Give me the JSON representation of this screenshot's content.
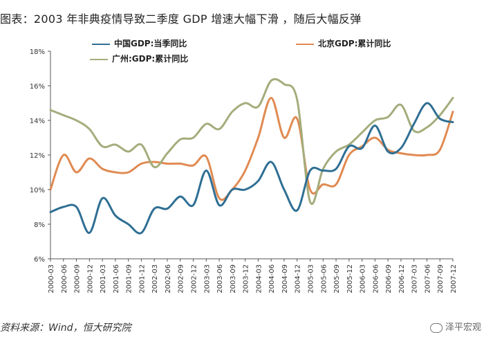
{
  "chart_data": {
    "type": "line",
    "title": "图表：2003 年非典疫情导致二季度 GDP 增速大幅下滑 ，随后大幅反弹",
    "ylim": [
      6,
      18
    ],
    "yticks": [
      "6%",
      "8%",
      "10%",
      "12%",
      "14%",
      "16%",
      "18%"
    ],
    "grid": false,
    "legend_placement": "top-left",
    "categories": [
      "2000-03",
      "2000-06",
      "2000-09",
      "2000-12",
      "2001-03",
      "2001-06",
      "2001-09",
      "2001-12",
      "2002-03",
      "2002-06",
      "2002-09",
      "2002-12",
      "2003-03",
      "2003-06",
      "2003-09",
      "2003-12",
      "2004-03",
      "2004-06",
      "2004-09",
      "2004-12",
      "2005-03",
      "2005-06",
      "2005-09",
      "2005-12",
      "2006-03",
      "2006-06",
      "2006-09",
      "2006-12",
      "2007-03",
      "2007-06",
      "2007-09",
      "2007-12"
    ],
    "series": [
      {
        "name": "中国GDP:当季同比",
        "color": "#2f6f94",
        "values": [
          8.7,
          9.0,
          9.0,
          7.5,
          9.5,
          8.5,
          8.0,
          7.5,
          8.9,
          8.9,
          9.6,
          9.1,
          11.1,
          9.1,
          10.0,
          10.0,
          10.5,
          11.6,
          10.0,
          8.8,
          11.1,
          11.1,
          11.2,
          12.5,
          12.4,
          13.7,
          12.2,
          12.4,
          13.8,
          15.0,
          14.1,
          13.9
        ],
        "legend_row": 1
      },
      {
        "name": "北京GDP:累计同比",
        "color": "#e08a52",
        "values": [
          10.0,
          12.0,
          11.0,
          11.8,
          11.2,
          11.0,
          11.0,
          11.5,
          11.6,
          11.5,
          11.5,
          11.4,
          11.9,
          9.5,
          10.0,
          11.1,
          13.0,
          15.3,
          13.0,
          14.1,
          10.0,
          10.3,
          10.3,
          12.0,
          12.5,
          13.0,
          12.3,
          12.1,
          12.0,
          12.0,
          12.3,
          14.5
        ],
        "legend_row": 1
      },
      {
        "name": "广州:GDP:累计同比",
        "color": "#a3ad7c",
        "values": [
          14.6,
          14.3,
          14.0,
          13.5,
          12.5,
          12.6,
          12.2,
          12.6,
          11.3,
          12.1,
          12.9,
          13.0,
          13.8,
          13.5,
          14.5,
          15.0,
          14.8,
          16.3,
          16.1,
          15.2,
          9.3,
          11.2,
          12.2,
          12.6,
          13.3,
          14.0,
          14.2,
          14.9,
          13.4,
          13.6,
          14.3,
          15.3
        ],
        "legend_row": 2
      }
    ]
  },
  "source": "资料来源：Wind，恒大研究院",
  "watermark": "泽平宏观"
}
